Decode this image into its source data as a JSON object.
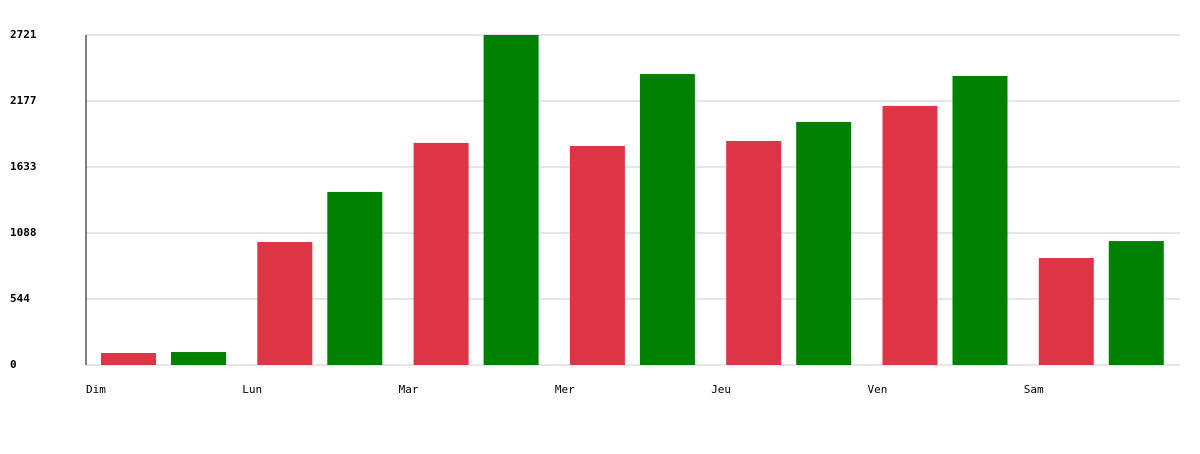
{
  "chart_data": {
    "type": "bar",
    "categories": [
      "Dim",
      "Lun",
      "Mar",
      "Mer",
      "Jeu",
      "Ven",
      "Sam"
    ],
    "series": [
      {
        "color": "#dc3545",
        "values": [
          99,
          1014,
          1831,
          1806,
          1847,
          2136,
          882
        ]
      },
      {
        "color": "#008000",
        "values": [
          107,
          1427,
          2721,
          2399,
          2004,
          2383,
          1022
        ]
      }
    ],
    "ylim": [
      0,
      2721
    ],
    "yticks": [
      0,
      544,
      1088,
      1633,
      2177,
      2721
    ],
    "grid": true
  }
}
